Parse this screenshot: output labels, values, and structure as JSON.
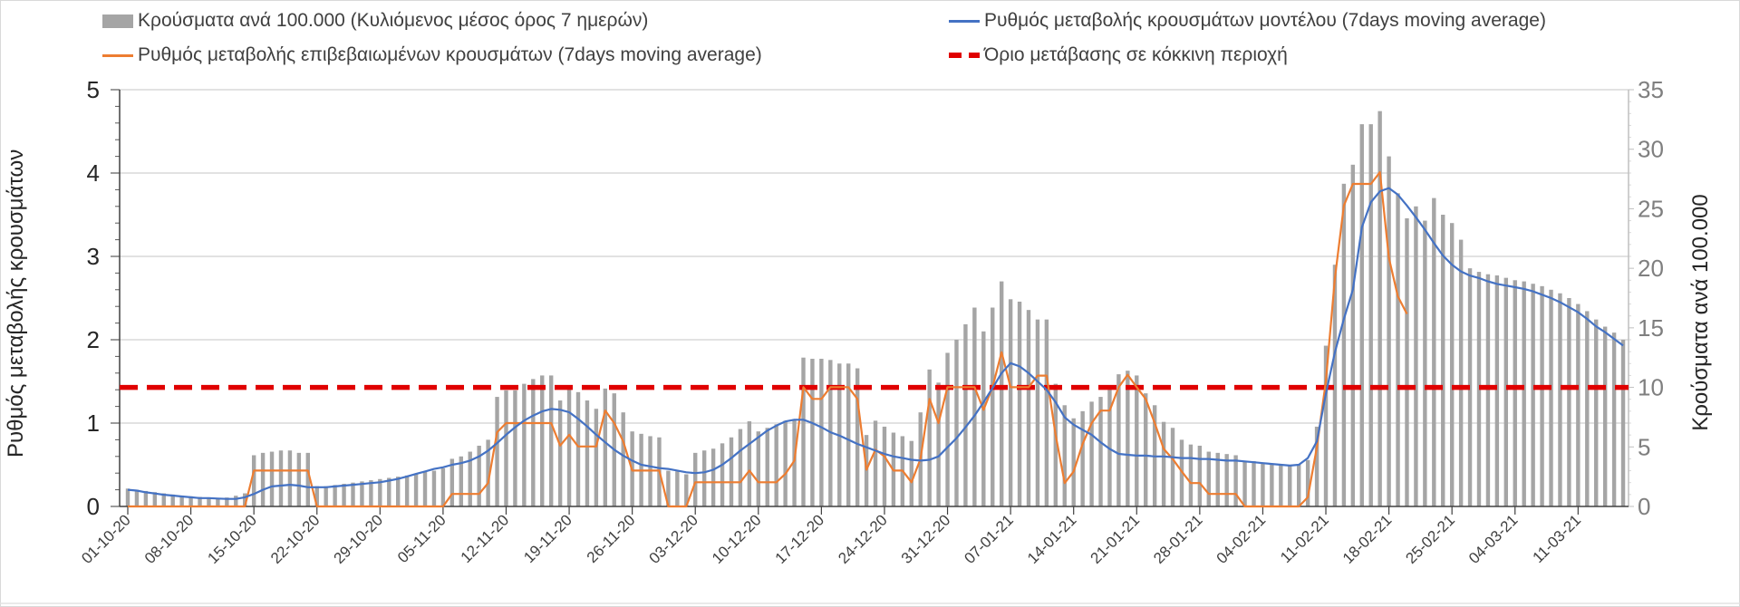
{
  "chart_data": {
    "type": "bar+line",
    "legend": {
      "bars": "Κρούσματα ανά 100.000 (Κυλιόμενος μέσος όρος 7 ημερών)",
      "blue": "Ρυθμός μεταβολής κρουσμάτων μοντέλου (7days moving average)",
      "orange": "Ρυθμός μεταβολής επιβεβαιωμένων κρουσμάτων (7days moving average)",
      "red": "Όριο μετάβασης σε κόκκινη περιοχή"
    },
    "ylabel_left": "Ρυθμός μεταβολής κρουσμάτων",
    "ylabel_right": "Κρούσματα ανά 100.000",
    "ylim_left": [
      0,
      5
    ],
    "yticks_left": [
      "0",
      "1",
      "2",
      "3",
      "4",
      "5"
    ],
    "ylim_right": [
      0,
      35
    ],
    "yticks_right": [
      "0",
      "5",
      "10",
      "15",
      "20",
      "25",
      "30",
      "35"
    ],
    "x_tick_every_days": 7,
    "x_tick_labels": [
      "01-10-20",
      "08-10-20",
      "15-10-20",
      "22-10-20",
      "29-10-20",
      "05-11-20",
      "12-11-20",
      "19-11-20",
      "26-11-20",
      "03-12-20",
      "10-12-20",
      "17-12-20",
      "24-12-20",
      "31-12-20",
      "07-01-21",
      "14-01-21",
      "21-01-21",
      "28-01-21",
      "04-02-21",
      "11-02-21",
      "18-02-21",
      "25-02-21",
      "04-03-21",
      "11-03-21"
    ],
    "grid": true,
    "legend_position": "top",
    "threshold_right_axis": 10,
    "colors": {
      "bars": "#a5a5a5",
      "blue": "#4472c4",
      "orange": "#ed7d31",
      "red": "#e00000",
      "grid": "#d9d9d9"
    },
    "cases_per_100k": [
      1.5,
      1.4,
      1.3,
      1.2,
      1.1,
      1.0,
      0.9,
      0.85,
      0.8,
      0.7,
      0.7,
      0.75,
      0.9,
      1.1,
      4.3,
      4.5,
      4.6,
      4.7,
      4.7,
      4.5,
      4.5,
      1.7,
      1.7,
      1.8,
      1.9,
      2.0,
      2.1,
      2.2,
      2.3,
      2.4,
      2.5,
      2.6,
      2.7,
      2.9,
      3.0,
      3.2,
      4.0,
      4.2,
      4.6,
      5.1,
      5.6,
      9.2,
      9.75,
      9.75,
      10.3,
      10.7,
      11.0,
      11.0,
      8.9,
      9.9,
      9.6,
      8.9,
      8.2,
      9.9,
      9.5,
      7.9,
      6.3,
      6.1,
      5.9,
      5.8,
      3.0,
      2.95,
      2.7,
      4.5,
      4.7,
      4.85,
      5.3,
      5.8,
      6.5,
      7.15,
      6.3,
      6.6,
      6.9,
      7.2,
      7.3,
      12.5,
      12.4,
      12.4,
      12.3,
      12.0,
      12.0,
      11.6,
      6.0,
      7.2,
      6.7,
      6.2,
      5.9,
      5.5,
      7.9,
      11.5,
      10.4,
      12.9,
      14.0,
      15.3,
      16.7,
      14.7,
      16.7,
      18.9,
      17.4,
      17.2,
      16.5,
      15.7,
      15.7,
      10.3,
      8.5,
      7.4,
      8.0,
      8.8,
      9.2,
      9.8,
      11.1,
      11.4,
      11.0,
      9.5,
      8.5,
      7.1,
      6.6,
      5.6,
      5.2,
      5.1,
      4.6,
      4.5,
      4.4,
      4.3,
      3.8,
      3.8,
      3.6,
      3.5,
      3.5,
      3.5,
      3.5,
      3.9,
      6.7,
      13.5,
      20.3,
      27.1,
      28.7,
      32.1,
      32.1,
      33.2,
      29.4,
      26.3,
      24.2,
      25.2,
      24.0,
      25.9,
      24.5,
      23.8,
      22.4,
      20.0,
      19.7,
      19.5,
      19.4,
      19.2,
      19.0,
      18.9,
      18.7,
      18.5,
      18.2,
      17.9,
      17.5,
      17.0,
      16.4,
      15.7,
      15.1,
      14.6,
      14.0
    ],
    "model_rate": [
      0.2,
      0.19,
      0.17,
      0.155,
      0.14,
      0.13,
      0.12,
      0.11,
      0.1,
      0.1,
      0.095,
      0.09,
      0.09,
      0.11,
      0.15,
      0.2,
      0.24,
      0.25,
      0.26,
      0.25,
      0.23,
      0.23,
      0.23,
      0.24,
      0.25,
      0.26,
      0.27,
      0.28,
      0.29,
      0.31,
      0.33,
      0.36,
      0.39,
      0.42,
      0.45,
      0.47,
      0.5,
      0.52,
      0.55,
      0.6,
      0.67,
      0.76,
      0.86,
      0.95,
      1.03,
      1.09,
      1.14,
      1.17,
      1.16,
      1.13,
      1.05,
      0.96,
      0.86,
      0.77,
      0.68,
      0.61,
      0.55,
      0.5,
      0.48,
      0.46,
      0.45,
      0.43,
      0.41,
      0.4,
      0.41,
      0.44,
      0.5,
      0.58,
      0.67,
      0.75,
      0.83,
      0.91,
      0.97,
      1.02,
      1.04,
      1.04,
      1.0,
      0.95,
      0.89,
      0.85,
      0.8,
      0.75,
      0.71,
      0.67,
      0.63,
      0.6,
      0.58,
      0.56,
      0.55,
      0.56,
      0.6,
      0.71,
      0.82,
      0.95,
      1.09,
      1.25,
      1.42,
      1.6,
      1.72,
      1.68,
      1.6,
      1.5,
      1.4,
      1.25,
      1.07,
      0.98,
      0.92,
      0.86,
      0.77,
      0.69,
      0.63,
      0.62,
      0.61,
      0.61,
      0.6,
      0.6,
      0.59,
      0.58,
      0.58,
      0.57,
      0.57,
      0.56,
      0.55,
      0.55,
      0.54,
      0.53,
      0.52,
      0.51,
      0.5,
      0.49,
      0.5,
      0.58,
      0.78,
      1.35,
      1.85,
      2.25,
      2.6,
      3.35,
      3.65,
      3.78,
      3.82,
      3.74,
      3.61,
      3.47,
      3.32,
      3.16,
      3.01,
      2.9,
      2.82,
      2.77,
      2.74,
      2.7,
      2.67,
      2.65,
      2.63,
      2.61,
      2.58,
      2.54,
      2.5,
      2.45,
      2.39,
      2.33,
      2.25,
      2.16,
      2.09,
      2.01,
      1.93
    ],
    "confirmed_rate": [
      0,
      0,
      0,
      0,
      0,
      0,
      0,
      0,
      0,
      0,
      0,
      0,
      0,
      0,
      0.43,
      0.43,
      0.43,
      0.43,
      0.43,
      0.43,
      0.43,
      0,
      0,
      0,
      0,
      0,
      0,
      0,
      0,
      0,
      0,
      0,
      0,
      0,
      0,
      0,
      0.15,
      0.15,
      0.15,
      0.15,
      0.28,
      0.89,
      1.0,
      1.0,
      1.0,
      1.0,
      1.0,
      1.0,
      0.73,
      0.86,
      0.72,
      0.72,
      0.72,
      1.15,
      1.0,
      0.78,
      0.43,
      0.43,
      0.43,
      0.43,
      0,
      0,
      0,
      0.29,
      0.29,
      0.29,
      0.29,
      0.29,
      0.29,
      0.43,
      0.29,
      0.29,
      0.29,
      0.39,
      0.55,
      1.43,
      1.29,
      1.29,
      1.43,
      1.43,
      1.43,
      1.29,
      0.44,
      0.68,
      0.6,
      0.43,
      0.43,
      0.29,
      0.57,
      1.29,
      1.0,
      1.43,
      1.43,
      1.43,
      1.43,
      1.16,
      1.43,
      1.85,
      1.43,
      1.43,
      1.43,
      1.57,
      1.57,
      0.86,
      0.28,
      0.42,
      0.75,
      1.0,
      1.15,
      1.15,
      1.43,
      1.58,
      1.43,
      1.29,
      1.0,
      0.69,
      0.57,
      0.42,
      0.28,
      0.28,
      0.15,
      0.15,
      0.15,
      0.15,
      0,
      0,
      0,
      0,
      0,
      0,
      0,
      0.11,
      0.71,
      1.5,
      2.74,
      3.61,
      3.87,
      3.87,
      3.87,
      4.01,
      2.98,
      2.52,
      2.31
    ]
  }
}
